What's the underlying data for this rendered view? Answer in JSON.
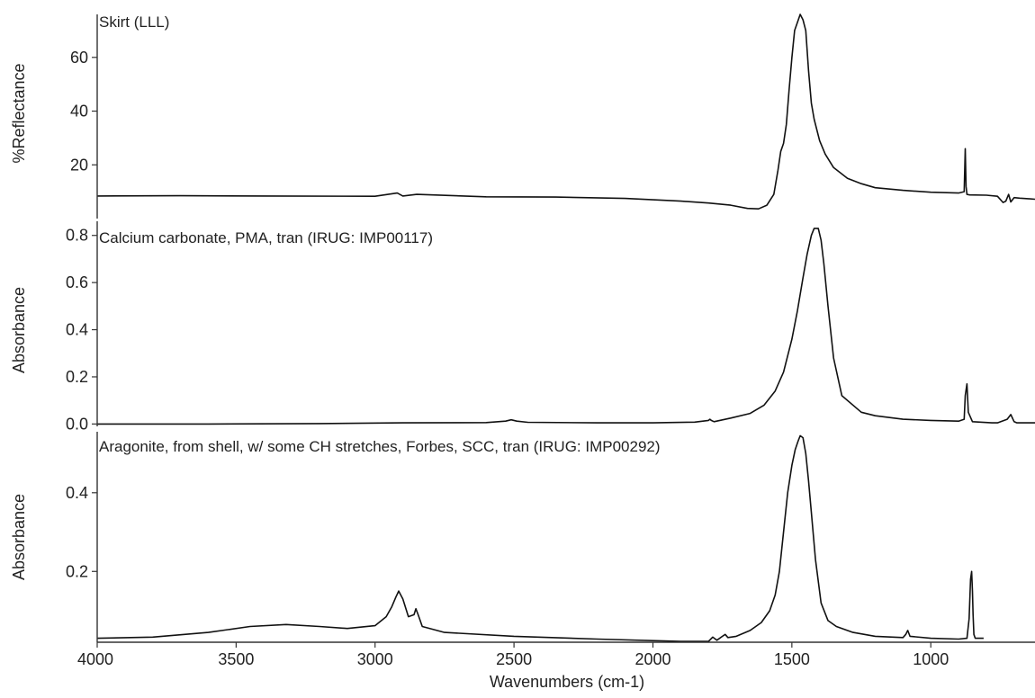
{
  "chart_data": {
    "type": "line",
    "xlabel": "Wavenumbers (cm-1)",
    "xlim": [
      4000,
      625
    ],
    "x_ticks": [
      4000,
      3500,
      3000,
      2500,
      2000,
      1500,
      1000
    ],
    "panels": [
      {
        "title": "Skirt (LLL)",
        "ylabel": "%Reflectance",
        "ylim": [
          0,
          76
        ],
        "y_ticks": [
          20,
          40,
          60
        ],
        "tick_labels": [
          "20",
          "40",
          "60"
        ],
        "series": {
          "x": [
            4000,
            3700,
            3400,
            3000,
            2920,
            2900,
            2850,
            2600,
            2350,
            2100,
            1900,
            1800,
            1720,
            1660,
            1620,
            1590,
            1565,
            1550,
            1540,
            1530,
            1520,
            1510,
            1500,
            1490,
            1480,
            1470,
            1460,
            1450,
            1440,
            1430,
            1420,
            1400,
            1380,
            1350,
            1300,
            1250,
            1200,
            1100,
            1000,
            900,
            880,
            876,
            873,
            870,
            860,
            800,
            760,
            740,
            730,
            720,
            712,
            700,
            680,
            650,
            625
          ],
          "y": [
            8.4,
            8.5,
            8.4,
            8.3,
            9.5,
            8.4,
            9.0,
            8.1,
            8.0,
            7.5,
            6.5,
            5.8,
            5.0,
            3.8,
            3.6,
            5.0,
            9.0,
            18.0,
            25.0,
            28.0,
            35.0,
            48.0,
            60.0,
            70.0,
            73.0,
            76.0,
            74.0,
            70.0,
            55.0,
            43.0,
            37.0,
            29.0,
            24.0,
            19.0,
            15.0,
            13.0,
            11.5,
            10.5,
            9.8,
            9.5,
            10.0,
            26.0,
            12.0,
            9.0,
            8.8,
            8.7,
            8.3,
            6.0,
            6.5,
            9.0,
            6.2,
            7.8,
            7.6,
            7.4,
            7.2
          ]
        }
      },
      {
        "title": "Calcium carbonate, PMA, tran (IRUG: IMP00117)",
        "ylabel": "Absorbance",
        "ylim": [
          -0.01,
          0.86
        ],
        "y_ticks": [
          0.0,
          0.2,
          0.4,
          0.6,
          0.8
        ],
        "tick_labels": [
          "0.0",
          "0.2",
          "0.4",
          "0.6",
          "0.8"
        ],
        "series": {
          "x": [
            4000,
            3600,
            3200,
            2900,
            2600,
            2530,
            2510,
            2490,
            2450,
            2200,
            2000,
            1850,
            1800,
            1795,
            1790,
            1780,
            1720,
            1650,
            1600,
            1560,
            1530,
            1500,
            1480,
            1460,
            1445,
            1430,
            1420,
            1405,
            1395,
            1385,
            1370,
            1350,
            1320,
            1250,
            1200,
            1100,
            1000,
            900,
            880,
            876,
            870,
            865,
            850,
            780,
            760,
            725,
            712,
            700,
            690,
            660,
            625
          ],
          "y": [
            0.0,
            0.0,
            0.002,
            0.005,
            0.006,
            0.012,
            0.018,
            0.012,
            0.007,
            0.005,
            0.005,
            0.008,
            0.015,
            0.02,
            0.015,
            0.01,
            0.025,
            0.045,
            0.08,
            0.14,
            0.22,
            0.36,
            0.48,
            0.62,
            0.72,
            0.8,
            0.83,
            0.83,
            0.78,
            0.68,
            0.5,
            0.28,
            0.12,
            0.05,
            0.035,
            0.02,
            0.015,
            0.012,
            0.02,
            0.12,
            0.17,
            0.05,
            0.01,
            0.005,
            0.005,
            0.02,
            0.04,
            0.01,
            0.005,
            0.005,
            0.005
          ]
        }
      },
      {
        "title": "Aragonite, from shell, w/ some CH stretches, Forbes, SCC, tran (IRUG: IMP00292)",
        "ylabel": "Absorbance",
        "ylim": [
          0.02,
          0.555
        ],
        "y_ticks": [
          0.2,
          0.4
        ],
        "tick_labels": [
          "0.2",
          "0.4"
        ],
        "series": {
          "x": [
            4000,
            3800,
            3600,
            3450,
            3320,
            3200,
            3100,
            3000,
            2960,
            2940,
            2925,
            2915,
            2900,
            2880,
            2860,
            2853,
            2845,
            2830,
            2750,
            2500,
            2200,
            1900,
            1800,
            1785,
            1770,
            1750,
            1740,
            1730,
            1700,
            1650,
            1610,
            1580,
            1560,
            1545,
            1530,
            1515,
            1500,
            1488,
            1478,
            1470,
            1460,
            1450,
            1440,
            1430,
            1415,
            1395,
            1370,
            1340,
            1280,
            1200,
            1100,
            1090,
            1083,
            1075,
            1000,
            900,
            870,
            862,
            857,
            853,
            850,
            848,
            845,
            840,
            810
          ],
          "y": [
            0.03,
            0.033,
            0.045,
            0.06,
            0.065,
            0.06,
            0.055,
            0.062,
            0.085,
            0.11,
            0.135,
            0.15,
            0.13,
            0.085,
            0.09,
            0.105,
            0.09,
            0.06,
            0.045,
            0.035,
            0.028,
            0.022,
            0.022,
            0.033,
            0.025,
            0.035,
            0.04,
            0.032,
            0.035,
            0.05,
            0.07,
            0.1,
            0.14,
            0.2,
            0.3,
            0.4,
            0.47,
            0.51,
            0.53,
            0.545,
            0.54,
            0.5,
            0.43,
            0.35,
            0.23,
            0.12,
            0.075,
            0.06,
            0.045,
            0.035,
            0.032,
            0.04,
            0.05,
            0.035,
            0.03,
            0.028,
            0.03,
            0.08,
            0.18,
            0.2,
            0.15,
            0.09,
            0.04,
            0.03,
            0.03
          ]
        }
      }
    ]
  }
}
